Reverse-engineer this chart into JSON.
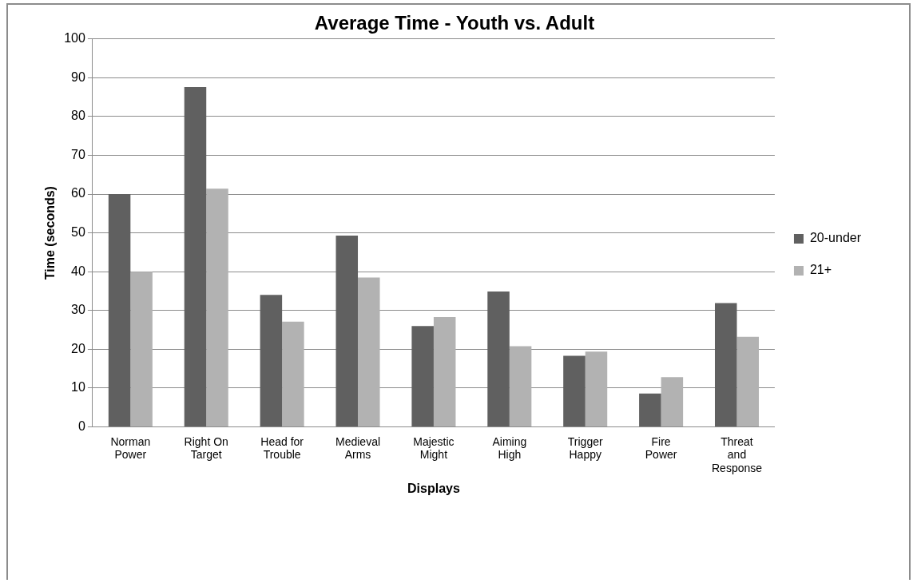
{
  "chart_data": {
    "type": "bar",
    "title": "Average Time - Youth vs. Adult",
    "xlabel": "Displays",
    "ylabel": "Time (seconds)",
    "categories": [
      "Norman Power",
      "Right On Target",
      "Head for Trouble",
      "Medieval Arms",
      "Majestic Might",
      "Aiming High",
      "Trigger Happy",
      "Fire Power",
      "Threat and Response"
    ],
    "series": [
      {
        "name": "20-under",
        "color": "#606060",
        "values": [
          60,
          87.6,
          34,
          49.3,
          26,
          34.9,
          18.3,
          8.6,
          31.9
        ]
      },
      {
        "name": "21+",
        "color": "#b2b2b2",
        "values": [
          40,
          61.4,
          27.1,
          38.5,
          28.3,
          20.8,
          19.4,
          12.8,
          23.2
        ]
      }
    ],
    "ylim": [
      0,
      100
    ],
    "yticks": [
      0,
      10,
      20,
      30,
      40,
      50,
      60,
      70,
      80,
      90,
      100
    ],
    "grid": "y",
    "legend": "right"
  }
}
